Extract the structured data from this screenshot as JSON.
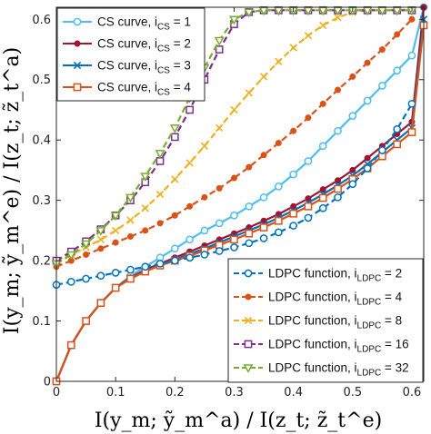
{
  "chart_data": {
    "type": "line",
    "xlabel": "I(y_m; ỹ_m^a) / I(z_t; z̃_t^e)",
    "ylabel": "I(y_m; ỹ_m^e) / I(z_t; z̃_t^a)",
    "xlim": [
      0,
      0.62
    ],
    "ylim": [
      0,
      0.62
    ],
    "xticks": [
      "0",
      "0.1",
      "0.2",
      "0.3",
      "0.4",
      "0.5",
      "0.6"
    ],
    "yticks": [
      "0",
      "0.1",
      "0.2",
      "0.3",
      "0.4",
      "0.5",
      "0.6"
    ],
    "grid": false,
    "legend_cs_position": "top-left",
    "legend_ldpc_position": "bottom-right",
    "series": [
      {
        "name": "CS curve, i_CS = 1",
        "legend_main": "CS curve, i",
        "legend_sub": "CS",
        "legend_tail": " = 1",
        "group": "cs",
        "color": "#4dbeee",
        "marker": "circle",
        "dash": "solid",
        "x": [
          0,
          0.025,
          0.05,
          0.075,
          0.1,
          0.125,
          0.15,
          0.175,
          0.2,
          0.225,
          0.25,
          0.275,
          0.3,
          0.325,
          0.35,
          0.375,
          0.4,
          0.425,
          0.45,
          0.475,
          0.5,
          0.525,
          0.55,
          0.575,
          0.6,
          0.62
        ],
        "y": [
          0,
          0.06,
          0.1,
          0.13,
          0.155,
          0.175,
          0.19,
          0.205,
          0.22,
          0.235,
          0.25,
          0.262,
          0.275,
          0.29,
          0.305,
          0.323,
          0.343,
          0.365,
          0.39,
          0.415,
          0.44,
          0.465,
          0.49,
          0.515,
          0.54,
          0.62
        ]
      },
      {
        "name": "CS curve, i_CS = 2",
        "legend_main": "CS curve, i",
        "legend_sub": "CS",
        "legend_tail": " = 2",
        "group": "cs",
        "color": "#a2142f",
        "marker": "dot",
        "dash": "solid",
        "x": [
          0,
          0.025,
          0.05,
          0.075,
          0.1,
          0.125,
          0.15,
          0.175,
          0.2,
          0.225,
          0.25,
          0.275,
          0.3,
          0.325,
          0.35,
          0.375,
          0.4,
          0.425,
          0.45,
          0.475,
          0.5,
          0.525,
          0.55,
          0.575,
          0.6,
          0.62
        ],
        "y": [
          0,
          0.06,
          0.1,
          0.13,
          0.155,
          0.172,
          0.185,
          0.195,
          0.205,
          0.215,
          0.225,
          0.235,
          0.245,
          0.255,
          0.266,
          0.277,
          0.29,
          0.303,
          0.318,
          0.333,
          0.35,
          0.37,
          0.39,
          0.41,
          0.43,
          0.62
        ]
      },
      {
        "name": "CS curve, i_CS = 3",
        "legend_main": "CS curve, i",
        "legend_sub": "CS",
        "legend_tail": " = 3",
        "group": "cs",
        "color": "#0072bd",
        "marker": "x",
        "dash": "solid",
        "x": [
          0,
          0.025,
          0.05,
          0.075,
          0.1,
          0.125,
          0.15,
          0.175,
          0.2,
          0.225,
          0.25,
          0.275,
          0.3,
          0.325,
          0.35,
          0.375,
          0.4,
          0.425,
          0.45,
          0.475,
          0.5,
          0.525,
          0.55,
          0.575,
          0.6,
          0.62
        ],
        "y": [
          0,
          0.06,
          0.1,
          0.13,
          0.155,
          0.171,
          0.183,
          0.193,
          0.202,
          0.211,
          0.22,
          0.23,
          0.24,
          0.25,
          0.26,
          0.271,
          0.283,
          0.296,
          0.31,
          0.325,
          0.341,
          0.36,
          0.38,
          0.4,
          0.42,
          0.6
        ]
      },
      {
        "name": "CS curve, i_CS = 4",
        "legend_main": "CS curve, i",
        "legend_sub": "CS",
        "legend_tail": " = 4",
        "group": "cs",
        "color": "#d95319",
        "marker": "square",
        "dash": "solid",
        "x": [
          0,
          0.025,
          0.05,
          0.075,
          0.1,
          0.125,
          0.15,
          0.175,
          0.2,
          0.225,
          0.25,
          0.275,
          0.3,
          0.325,
          0.35,
          0.375,
          0.4,
          0.425,
          0.45,
          0.475,
          0.5,
          0.525,
          0.55,
          0.575,
          0.6,
          0.62
        ],
        "y": [
          0,
          0.06,
          0.1,
          0.13,
          0.155,
          0.17,
          0.182,
          0.192,
          0.2,
          0.208,
          0.217,
          0.226,
          0.235,
          0.245,
          0.255,
          0.266,
          0.278,
          0.29,
          0.304,
          0.319,
          0.335,
          0.353,
          0.373,
          0.393,
          0.413,
          0.59
        ]
      },
      {
        "name": "LDPC function, i_LDPC = 2",
        "legend_main": "LDPC function, i",
        "legend_sub": "LDPC",
        "legend_tail": " = 2",
        "group": "ldpc",
        "color": "#0072bd",
        "marker": "circle",
        "dash": "dashed",
        "x": [
          0,
          0.025,
          0.05,
          0.075,
          0.1,
          0.125,
          0.15,
          0.175,
          0.2,
          0.225,
          0.25,
          0.275,
          0.3,
          0.325,
          0.35,
          0.375,
          0.4,
          0.425,
          0.45,
          0.475,
          0.5,
          0.525,
          0.55,
          0.575,
          0.6
        ],
        "y": [
          0.16,
          0.165,
          0.17,
          0.175,
          0.18,
          0.185,
          0.19,
          0.195,
          0.2,
          0.205,
          0.21,
          0.216,
          0.222,
          0.229,
          0.237,
          0.247,
          0.258,
          0.271,
          0.287,
          0.305,
          0.327,
          0.353,
          0.383,
          0.418,
          0.46
        ]
      },
      {
        "name": "LDPC function, i_LDPC = 4",
        "legend_main": "LDPC function, i",
        "legend_sub": "LDPC",
        "legend_tail": " = 4",
        "group": "ldpc",
        "color": "#d95319",
        "marker": "dot",
        "dash": "dashed",
        "x": [
          0,
          0.025,
          0.05,
          0.075,
          0.1,
          0.125,
          0.15,
          0.175,
          0.2,
          0.225,
          0.25,
          0.275,
          0.3,
          0.325,
          0.35,
          0.375,
          0.4,
          0.425,
          0.45,
          0.475,
          0.5,
          0.525,
          0.55,
          0.575,
          0.6
        ],
        "y": [
          0.19,
          0.2,
          0.21,
          0.22,
          0.23,
          0.24,
          0.25,
          0.262,
          0.275,
          0.29,
          0.305,
          0.32,
          0.337,
          0.355,
          0.375,
          0.395,
          0.415,
          0.437,
          0.46,
          0.483,
          0.505,
          0.528,
          0.55,
          0.575,
          0.6
        ]
      },
      {
        "name": "LDPC function, i_LDPC = 8",
        "legend_main": "LDPC function, i",
        "legend_sub": "LDPC",
        "legend_tail": " = 8",
        "group": "ldpc",
        "color": "#edb120",
        "marker": "x",
        "dash": "dashed",
        "x": [
          0,
          0.025,
          0.05,
          0.075,
          0.1,
          0.125,
          0.15,
          0.175,
          0.2,
          0.225,
          0.25,
          0.275,
          0.3,
          0.325,
          0.35,
          0.375,
          0.4,
          0.425,
          0.45,
          0.475,
          0.5,
          0.525,
          0.55,
          0.575,
          0.6
        ],
        "y": [
          0.2,
          0.21,
          0.222,
          0.235,
          0.25,
          0.267,
          0.287,
          0.31,
          0.335,
          0.362,
          0.39,
          0.42,
          0.45,
          0.478,
          0.505,
          0.53,
          0.553,
          0.573,
          0.59,
          0.603,
          0.612,
          0.615,
          0.615,
          0.615,
          0.615
        ]
      },
      {
        "name": "LDPC function, i_LDPC = 16",
        "legend_main": "LDPC function, i",
        "legend_sub": "LDPC",
        "legend_tail": " = 16",
        "group": "ldpc",
        "color": "#7e2f8e",
        "marker": "square",
        "dash": "dashed",
        "x": [
          0,
          0.025,
          0.05,
          0.075,
          0.1,
          0.125,
          0.15,
          0.175,
          0.2,
          0.225,
          0.25,
          0.275,
          0.3,
          0.325,
          0.35,
          0.375,
          0.4,
          0.425,
          0.45,
          0.475,
          0.5,
          0.525,
          0.55,
          0.575,
          0.6
        ],
        "y": [
          0.2,
          0.215,
          0.232,
          0.252,
          0.275,
          0.3,
          0.33,
          0.365,
          0.405,
          0.45,
          0.5,
          0.55,
          0.592,
          0.612,
          0.615,
          0.615,
          0.615,
          0.615,
          0.615,
          0.615,
          0.615,
          0.615,
          0.615,
          0.615,
          0.615
        ]
      },
      {
        "name": "LDPC function, i_LDPC = 32",
        "legend_main": "LDPC function, i",
        "legend_sub": "LDPC",
        "legend_tail": " = 32",
        "group": "ldpc",
        "color": "#77ac30",
        "marker": "triangle",
        "dash": "dashed",
        "x": [
          0,
          0.025,
          0.05,
          0.075,
          0.1,
          0.125,
          0.15,
          0.175,
          0.2,
          0.225,
          0.25,
          0.275,
          0.3,
          0.325,
          0.35,
          0.375,
          0.4,
          0.425,
          0.45,
          0.475,
          0.5,
          0.525,
          0.55,
          0.575,
          0.6
        ],
        "y": [
          0.195,
          0.21,
          0.228,
          0.25,
          0.275,
          0.305,
          0.34,
          0.378,
          0.42,
          0.47,
          0.52,
          0.565,
          0.6,
          0.612,
          0.615,
          0.615,
          0.615,
          0.615,
          0.615,
          0.615,
          0.615,
          0.615,
          0.615,
          0.615,
          0.615
        ]
      }
    ]
  }
}
